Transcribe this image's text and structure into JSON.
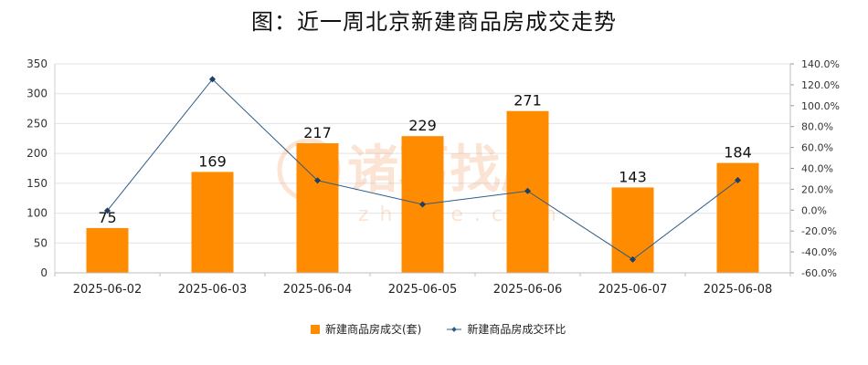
{
  "chart_data": {
    "type": "bar+line",
    "title": "图：近一周北京新建商品房成交走势",
    "categories": [
      "2025-06-02",
      "2025-06-03",
      "2025-06-04",
      "2025-06-05",
      "2025-06-06",
      "2025-06-07",
      "2025-06-08"
    ],
    "series": [
      {
        "name": "新建商品房成交(套)",
        "type": "bar",
        "axis": "left",
        "values": [
          75,
          169,
          217,
          229,
          271,
          143,
          184
        ],
        "color": "#FF8C00"
      },
      {
        "name": "新建商品房成交环比",
        "type": "line",
        "axis": "right",
        "values": [
          -0.5,
          125.3,
          28.4,
          5.5,
          18.3,
          -47.2,
          28.7
        ],
        "color": "#2E5C8A"
      }
    ],
    "y_left": {
      "ylim": [
        0,
        350
      ],
      "ticks": [
        "0",
        "50",
        "100",
        "150",
        "200",
        "250",
        "300",
        "350"
      ]
    },
    "y_right": {
      "ylim": [
        -60,
        140
      ],
      "ticks": [
        "-60.0%",
        "-40.0%",
        "-20.0%",
        "0.0%",
        "20.0%",
        "40.0%",
        "60.0%",
        "80.0%",
        "100.0%",
        "120.0%",
        "140.0%"
      ]
    },
    "grid": true,
    "legend_position": "bottom"
  },
  "watermark": {
    "text_cn": "诸葛找房",
    "text_en": "zhuge.com"
  }
}
